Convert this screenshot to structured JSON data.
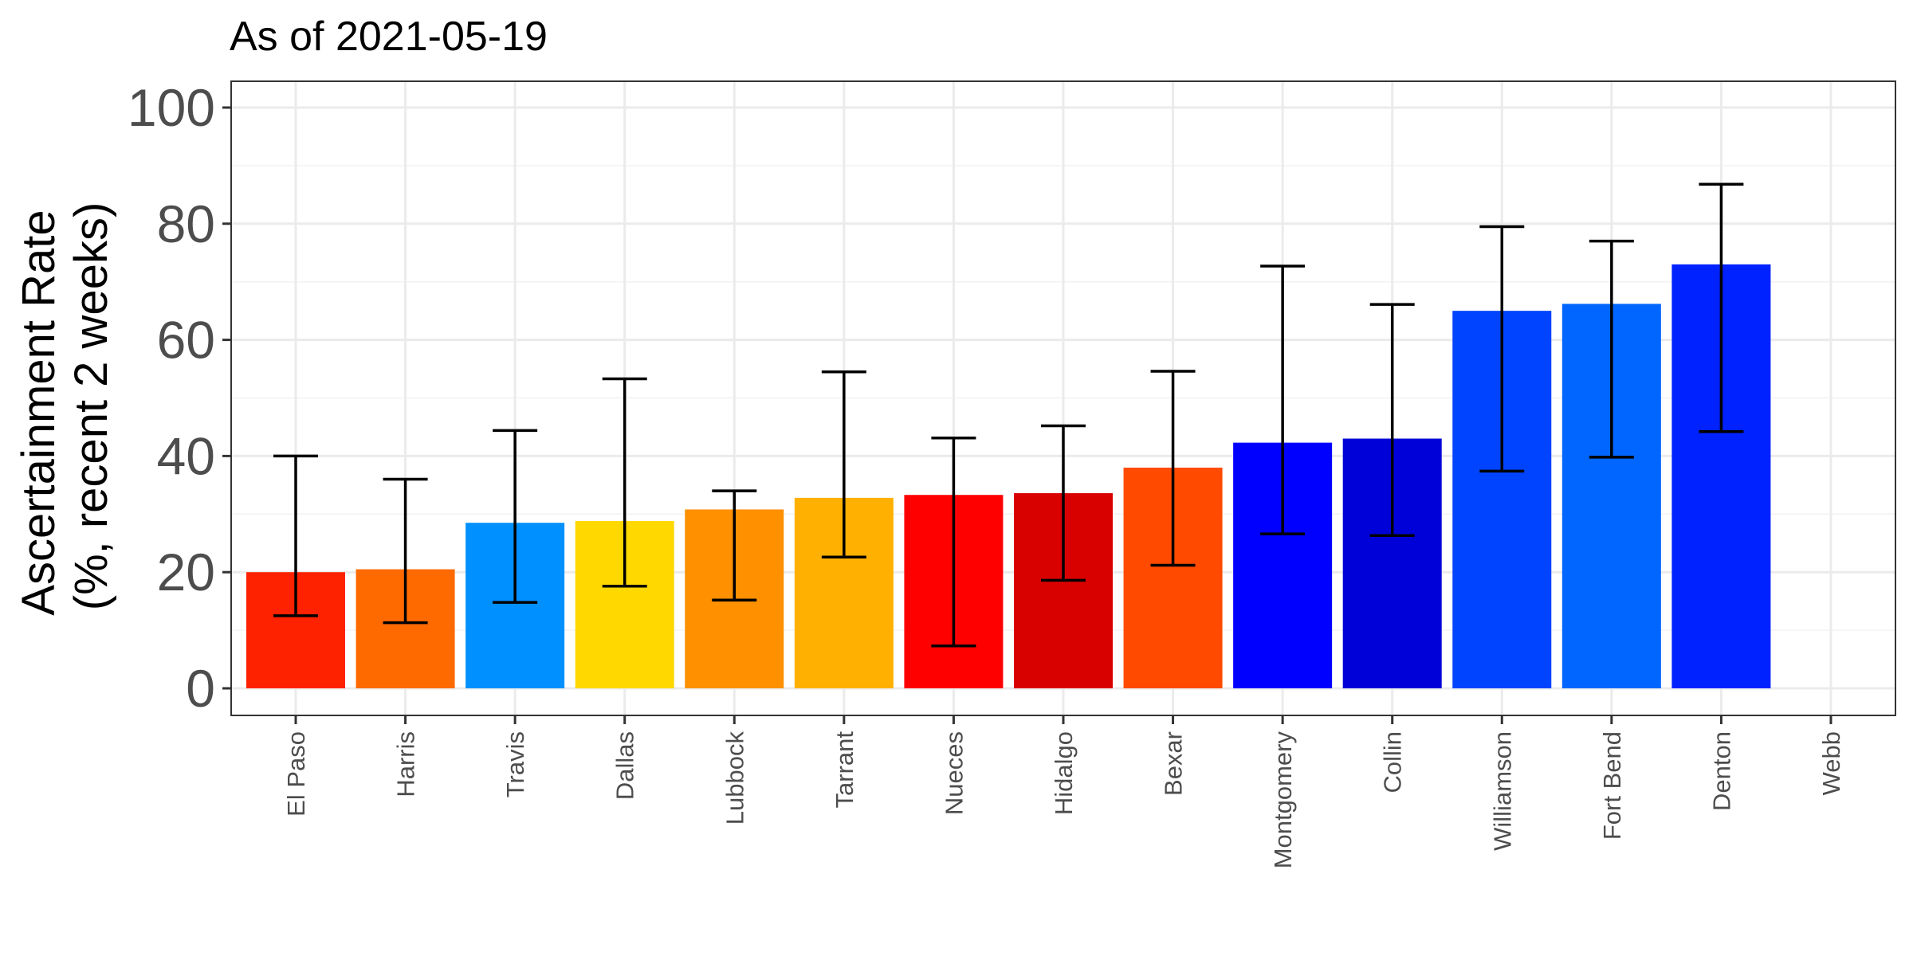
{
  "chart_data": {
    "type": "bar",
    "title": "As of 2021-05-19",
    "ylabel_lines": [
      "Ascertainment Rate",
      "(%, recent 2 weeks)"
    ],
    "xlabel": "",
    "ylim": [
      0,
      100
    ],
    "y_ticks": [
      0,
      20,
      40,
      60,
      80,
      100
    ],
    "grid": true,
    "legend": "none",
    "categories": [
      "El Paso",
      "Harris",
      "Travis",
      "Dallas",
      "Lubbock",
      "Tarrant",
      "Nueces",
      "Hidalgo",
      "Bexar",
      "Montgomery",
      "Collin",
      "Williamson",
      "Fort Bend",
      "Denton",
      "Webb"
    ],
    "values": [
      20,
      20.5,
      28.5,
      28.8,
      30.8,
      32.8,
      33.3,
      33.6,
      38,
      42.3,
      43,
      65,
      66.2,
      73,
      null
    ],
    "error_low": [
      12.5,
      11.3,
      14.8,
      17.6,
      15.2,
      22.6,
      7.3,
      18.6,
      21.2,
      26.6,
      26.3,
      37.4,
      39.8,
      44.2,
      null
    ],
    "error_high": [
      40,
      36,
      44.4,
      53.3,
      34,
      54.5,
      43.1,
      45.2,
      54.6,
      72.7,
      66.1,
      79.5,
      77,
      86.8,
      null
    ],
    "colors": [
      "#ff2200",
      "#ff6a00",
      "#0090ff",
      "#ffd800",
      "#ff9000",
      "#ffb000",
      "#ff0000",
      "#d90000",
      "#ff4a00",
      "#0000ff",
      "#0000d8",
      "#0044ff",
      "#0066ff",
      "#0022ff",
      "#ffffff"
    ]
  }
}
